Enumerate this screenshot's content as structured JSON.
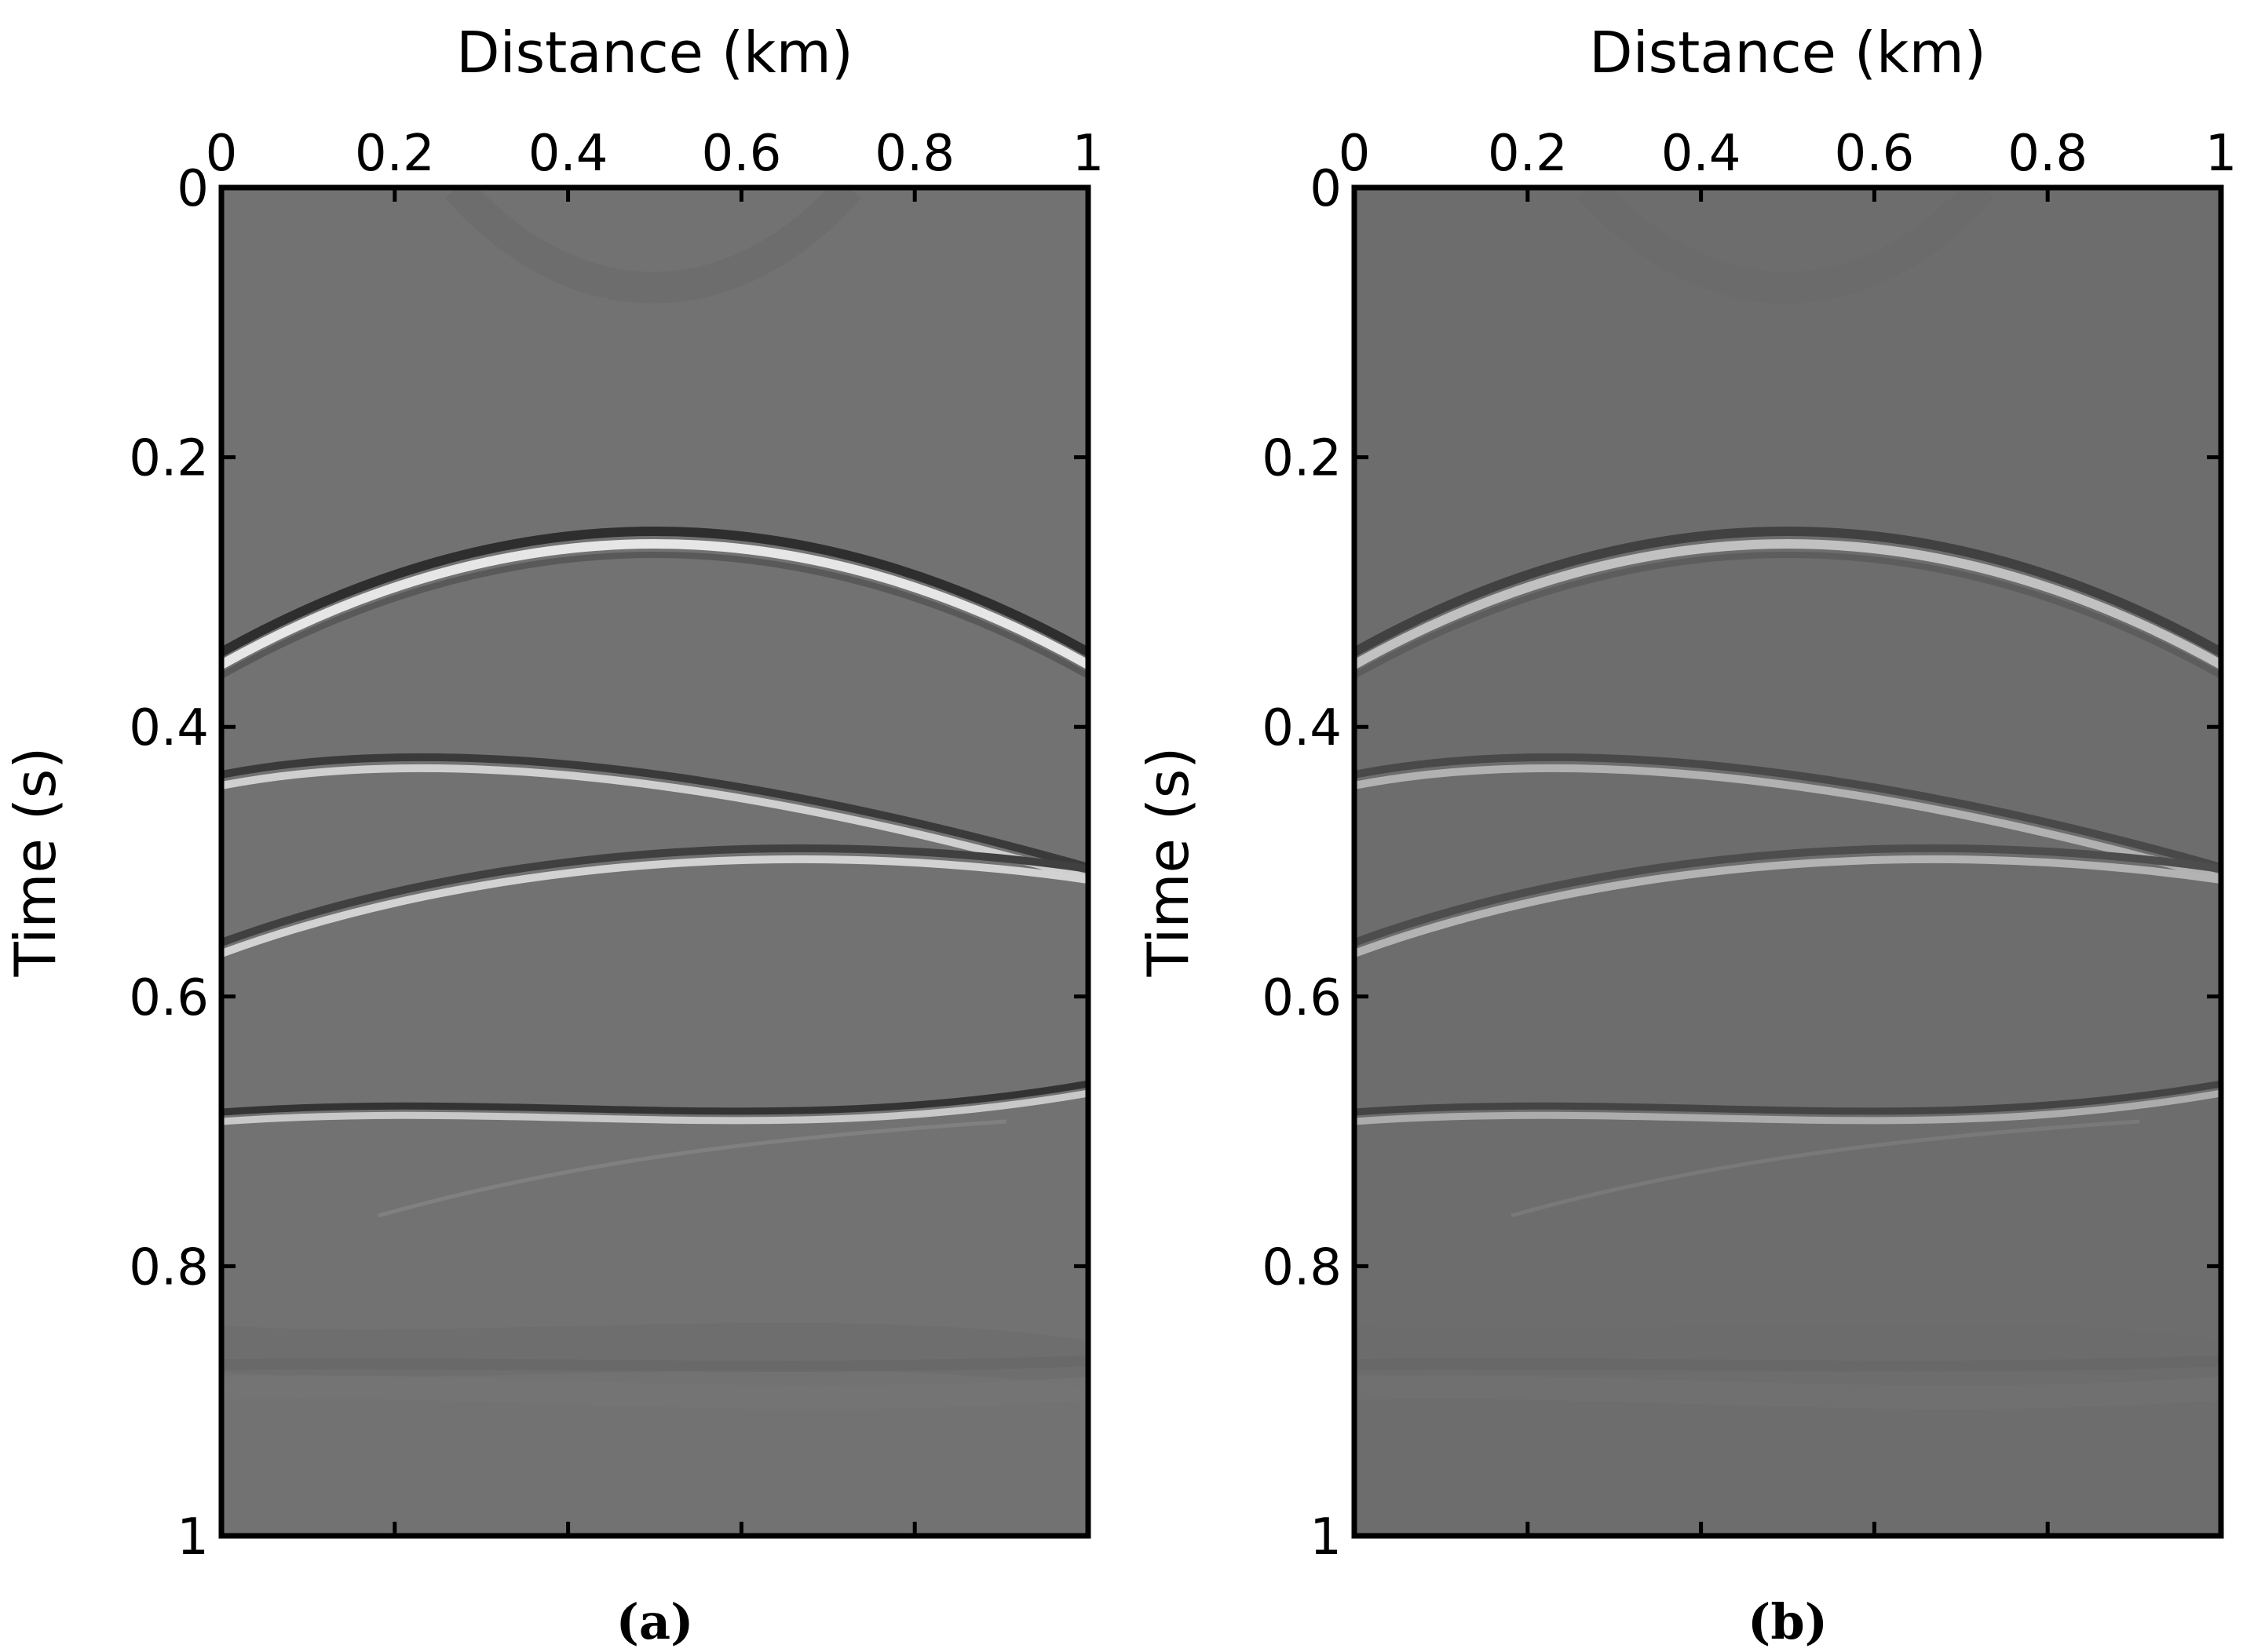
{
  "chart_data": [
    {
      "type": "image",
      "xlabel": "Distance (km)",
      "ylabel": "Time (s)",
      "caption": "(a)",
      "xlim": [
        0,
        1
      ],
      "ylim": [
        1,
        0
      ],
      "xticks": [
        0,
        0.2,
        0.4,
        0.6,
        0.8,
        1
      ],
      "yticks": [
        0,
        0.2,
        0.4,
        0.6,
        0.8,
        1
      ],
      "x_axis_position": "top",
      "colormap": "gray"
    },
    {
      "type": "image",
      "xlabel": "Distance (km)",
      "ylabel": "Time (s)",
      "caption": "(b)",
      "xlim": [
        0,
        1
      ],
      "ylim": [
        1,
        0
      ],
      "xticks": [
        0,
        0.2,
        0.4,
        0.6,
        0.8,
        1
      ],
      "yticks": [
        0,
        0.2,
        0.4,
        0.6,
        0.8,
        1
      ],
      "x_axis_position": "top",
      "colormap": "gray"
    }
  ]
}
